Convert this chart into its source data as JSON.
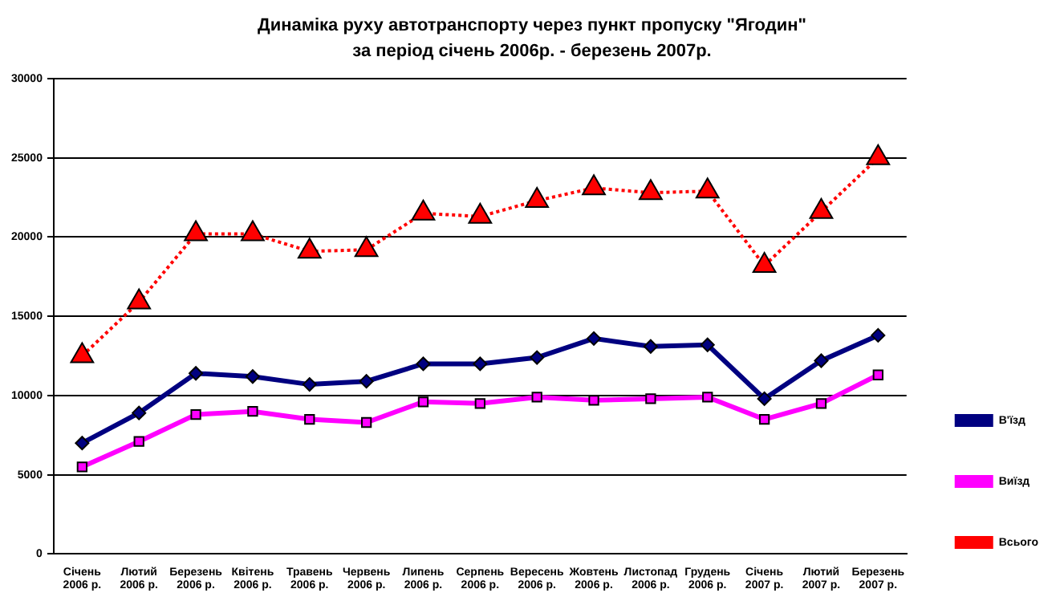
{
  "chart_data": {
    "type": "line",
    "title": "Динаміка руху автотранспорту через пункт пропуску \"Ягодин\"",
    "subtitle": "за період січень 2006р. - березень 2007р.",
    "categories": [
      "Січень 2006 р.",
      "Лютий 2006 р.",
      "Березень 2006 р.",
      "Квітень 2006 р.",
      "Травень 2006 р.",
      "Червень 2006 р.",
      "Липень 2006 р.",
      "Серпень 2006 р.",
      "Вересень 2006 р.",
      "Жовтень 2006 р.",
      "Листопад 2006 р.",
      "Грудень 2006 р.",
      "Січень 2007 р.",
      "Лютий 2007 р.",
      "Березень 2007 р."
    ],
    "series": [
      {
        "name": "В'їзд",
        "color": "#000080",
        "marker": "diamond",
        "line_style": "solid",
        "values": [
          7000,
          8900,
          11400,
          11200,
          10700,
          10900,
          12000,
          12000,
          12400,
          13600,
          13100,
          13200,
          9800,
          12200,
          13800
        ]
      },
      {
        "name": "Виїзд",
        "color": "#ff00ff",
        "marker": "square",
        "line_style": "solid",
        "values": [
          5500,
          7100,
          8800,
          9000,
          8500,
          8300,
          9600,
          9500,
          9900,
          9700,
          9800,
          9900,
          8500,
          9500,
          11300
        ]
      },
      {
        "name": "Всього",
        "color": "#ff0000",
        "marker": "triangle",
        "line_style": "dotted",
        "values": [
          12500,
          15900,
          20200,
          20200,
          19100,
          19200,
          21500,
          21300,
          22300,
          23100,
          22800,
          22900,
          18200,
          21600,
          25000
        ]
      }
    ],
    "ylim": [
      0,
      30000
    ],
    "yticks": [
      0,
      5000,
      10000,
      15000,
      20000,
      25000,
      30000
    ],
    "grid": "y",
    "legend": "right"
  }
}
